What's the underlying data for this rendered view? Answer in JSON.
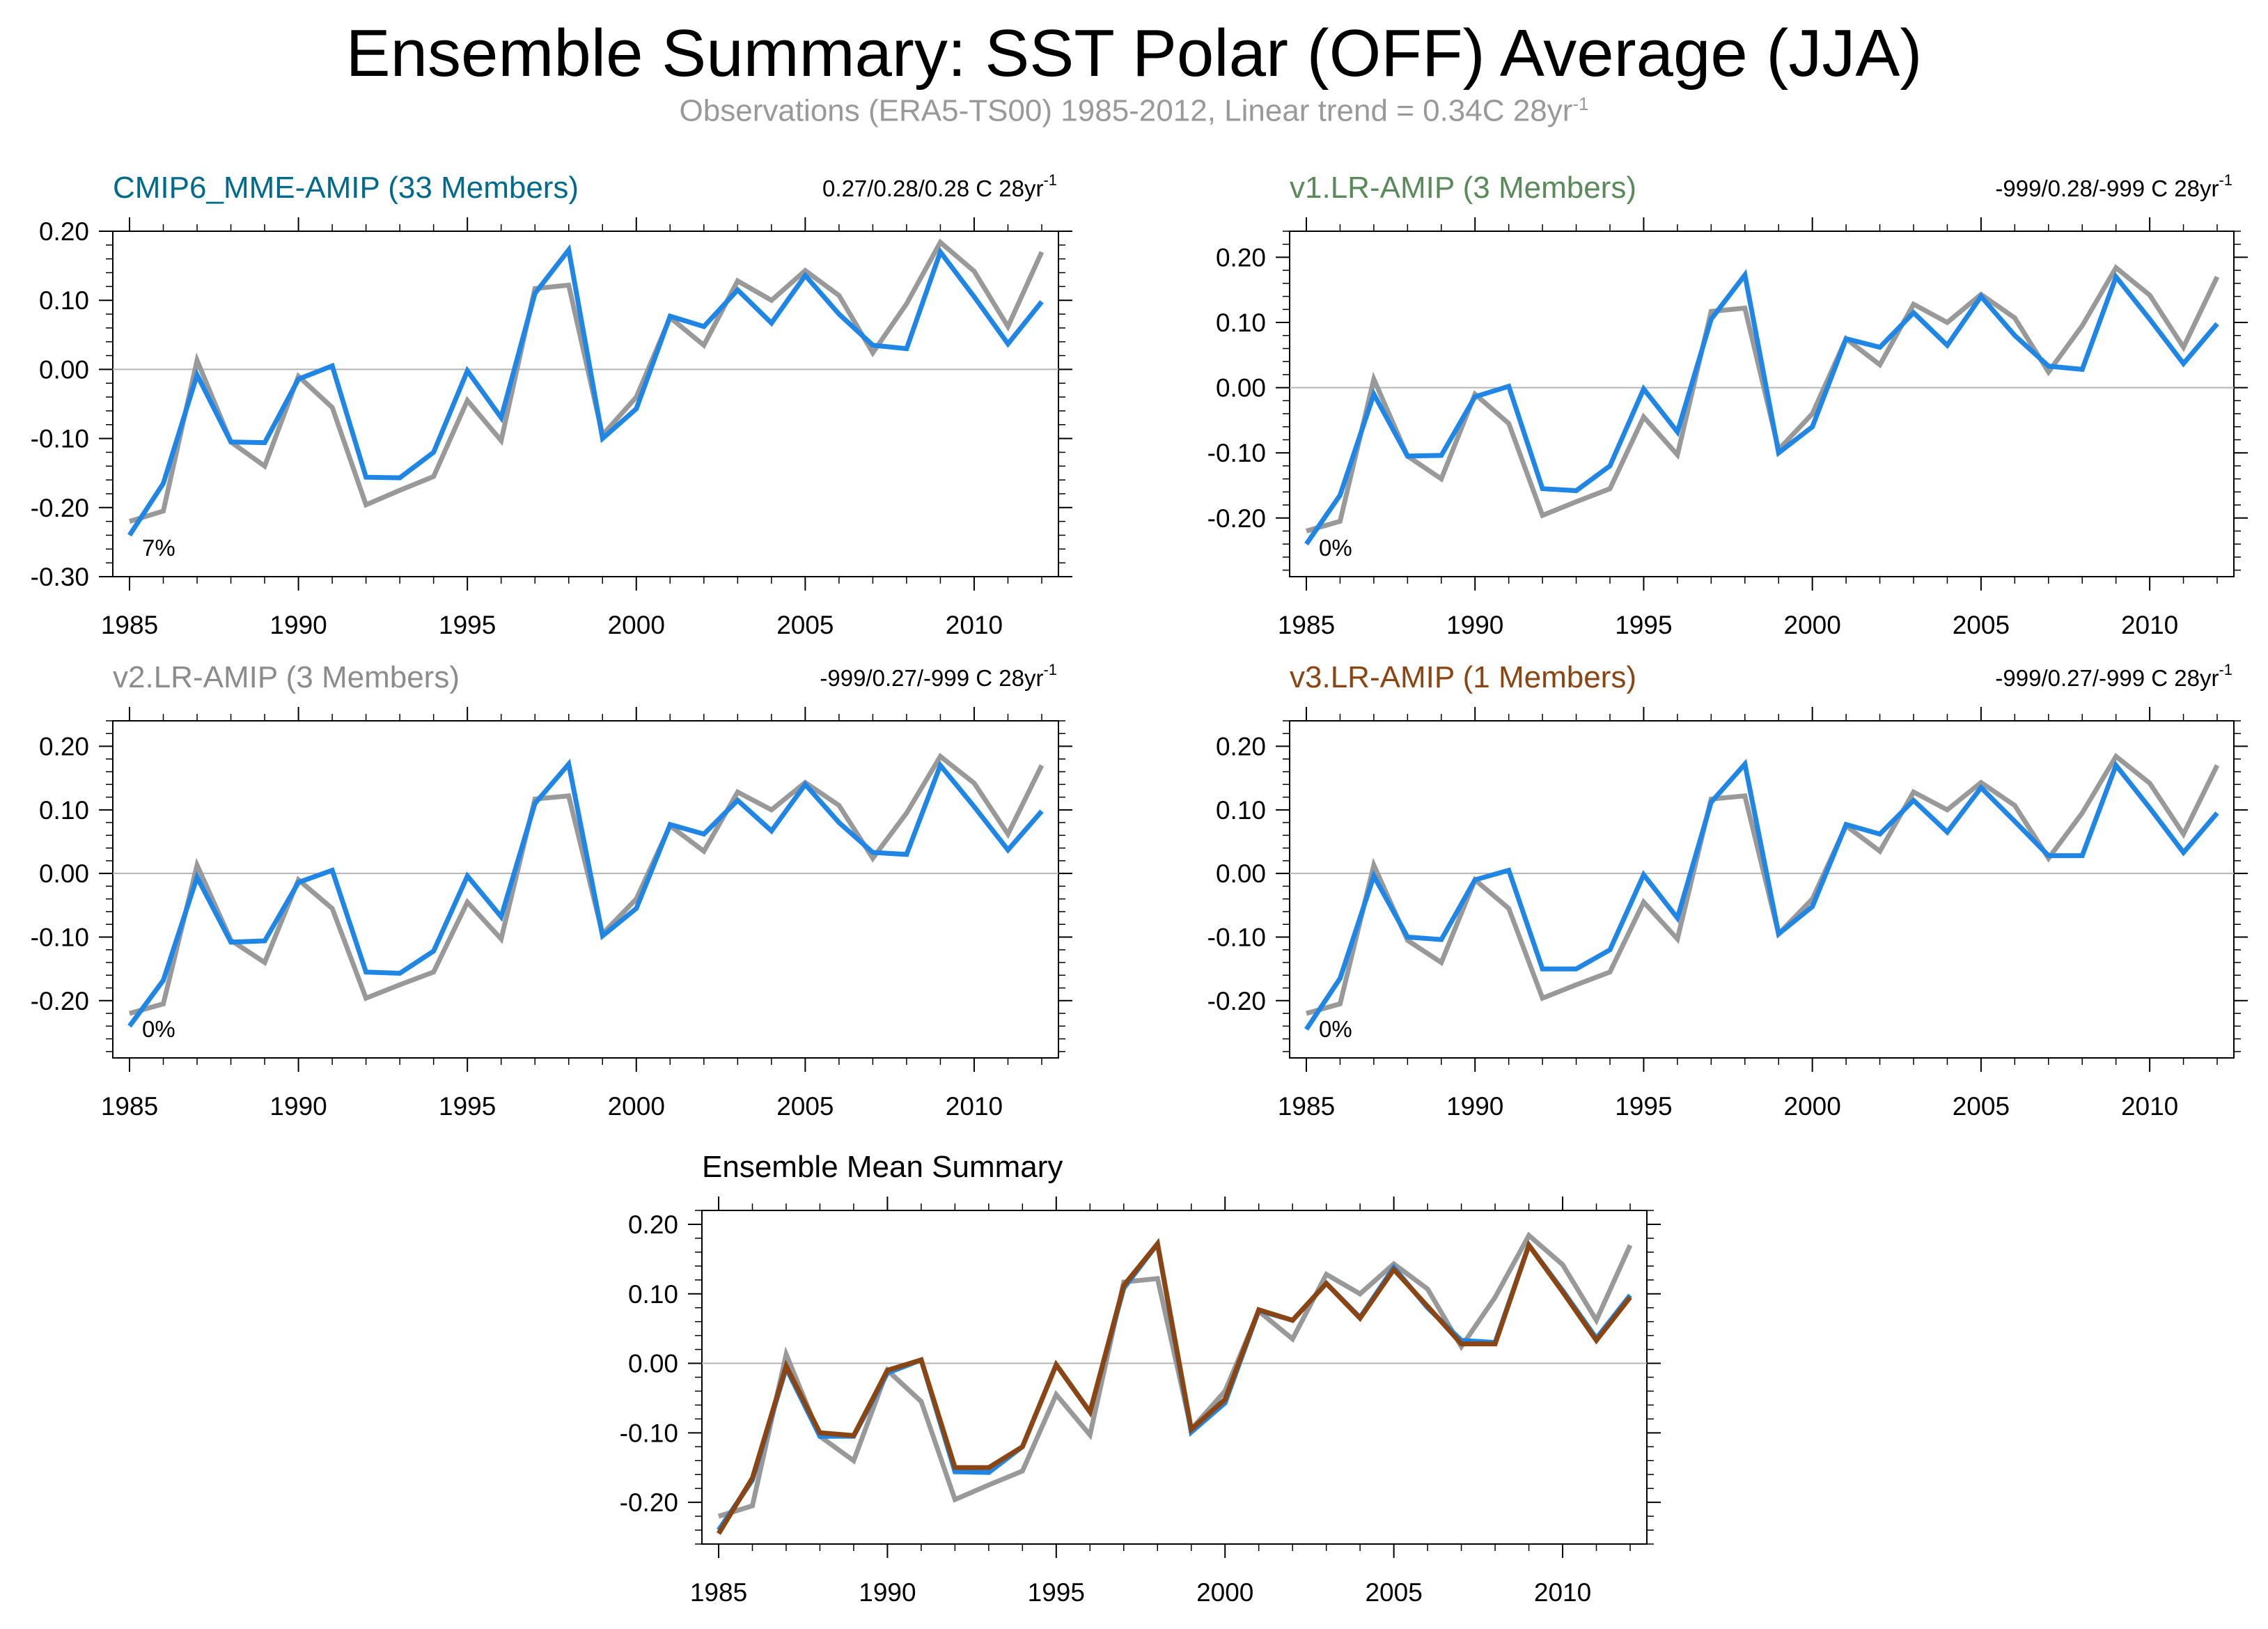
{
  "title": "Ensemble Summary: SST Polar (OFF) Average (JJA)",
  "subtitle": "Observations (ERA5-TS00) 1985-2012, Linear trend = 0.34C 28yr",
  "subtitle_sup": "-1",
  "colors": {
    "observations": "#999999",
    "ensemble_blue": "#1f86e6",
    "ensemble_mean": "#8b4513",
    "cmip6_title": "#006a8c",
    "v1_title": "#5a8a5a",
    "v2_title": "#8c8c8c",
    "v3_title": "#8b4513",
    "mean_title": "#000000"
  },
  "chart_data": [
    {
      "type": "line",
      "title": "CMIP6_MME-AMIP (33 Members)",
      "trend_label": "0.27/0.28/0.28 C 28yr",
      "trend_sup": "-1",
      "percent_label": "7%",
      "ylim": [
        -0.3,
        0.2
      ],
      "yticks": [
        "0.20",
        "0.10",
        "0.00",
        "-0.10",
        "-0.20",
        "-0.30"
      ],
      "xticks": [
        "1985",
        "1990",
        "1995",
        "2000",
        "2005",
        "2010"
      ],
      "x": [
        1985,
        1986,
        1987,
        1988,
        1989,
        1990,
        1991,
        1992,
        1993,
        1994,
        1995,
        1996,
        1997,
        1998,
        1999,
        2000,
        2001,
        2002,
        2003,
        2004,
        2005,
        2006,
        2007,
        2008,
        2009,
        2010,
        2011,
        2012
      ],
      "series": [
        {
          "values": [
            -0.22,
            -0.205,
            0.013,
            -0.105,
            -0.14,
            -0.01,
            -0.055,
            -0.196,
            -0.175,
            -0.155,
            -0.045,
            -0.103,
            0.117,
            0.122,
            -0.095,
            -0.04,
            0.075,
            0.035,
            0.128,
            0.1,
            0.143,
            0.107,
            0.024,
            0.095,
            0.184,
            0.142,
            0.062,
            0.17
          ]
        },
        {
          "values": [
            -0.24,
            -0.165,
            -0.008,
            -0.105,
            -0.106,
            -0.014,
            0.005,
            -0.156,
            -0.157,
            -0.12,
            -0.002,
            -0.07,
            0.11,
            0.173,
            -0.1,
            -0.057,
            0.077,
            0.062,
            0.115,
            0.067,
            0.136,
            0.08,
            0.035,
            0.03,
            0.17,
            0.105,
            0.037,
            0.098
          ]
        }
      ]
    },
    {
      "type": "line",
      "title": "v1.LR-AMIP (3 Members)",
      "trend_label": "-999/0.28/-999 C 28yr",
      "trend_sup": "-1",
      "percent_label": "0%",
      "ylim": [
        -0.29,
        0.24
      ],
      "yticks": [
        "0.20",
        "0.10",
        "0.00",
        "-0.10",
        "-0.20"
      ],
      "xticks": [
        "1985",
        "1990",
        "1995",
        "2000",
        "2005",
        "2010"
      ],
      "x": [
        1985,
        1986,
        1987,
        1988,
        1989,
        1990,
        1991,
        1992,
        1993,
        1994,
        1995,
        1996,
        1997,
        1998,
        1999,
        2000,
        2001,
        2002,
        2003,
        2004,
        2005,
        2006,
        2007,
        2008,
        2009,
        2010,
        2011,
        2012
      ],
      "series": [
        {
          "values": [
            -0.22,
            -0.205,
            0.013,
            -0.105,
            -0.14,
            -0.01,
            -0.055,
            -0.196,
            -0.175,
            -0.155,
            -0.045,
            -0.103,
            0.117,
            0.122,
            -0.095,
            -0.04,
            0.075,
            0.035,
            0.128,
            0.1,
            0.143,
            0.107,
            0.024,
            0.095,
            0.184,
            0.142,
            0.062,
            0.17
          ]
        },
        {
          "values": [
            -0.24,
            -0.165,
            -0.01,
            -0.105,
            -0.104,
            -0.014,
            0.002,
            -0.155,
            -0.158,
            -0.12,
            -0.002,
            -0.068,
            0.105,
            0.173,
            -0.1,
            -0.06,
            0.075,
            0.062,
            0.115,
            0.065,
            0.14,
            0.08,
            0.033,
            0.028,
            0.17,
            0.105,
            0.037,
            0.098
          ]
        }
      ]
    },
    {
      "type": "line",
      "title": "v2.LR-AMIP (3 Members)",
      "trend_label": "-999/0.27/-999 C 28yr",
      "trend_sup": "-1",
      "percent_label": "0%",
      "ylim": [
        -0.29,
        0.24
      ],
      "yticks": [
        "0.20",
        "0.10",
        "0.00",
        "-0.10",
        "-0.20"
      ],
      "xticks": [
        "1985",
        "1990",
        "1995",
        "2000",
        "2005",
        "2010"
      ],
      "x": [
        1985,
        1986,
        1987,
        1988,
        1989,
        1990,
        1991,
        1992,
        1993,
        1994,
        1995,
        1996,
        1997,
        1998,
        1999,
        2000,
        2001,
        2002,
        2003,
        2004,
        2005,
        2006,
        2007,
        2008,
        2009,
        2010,
        2011,
        2012
      ],
      "series": [
        {
          "values": [
            -0.22,
            -0.205,
            0.013,
            -0.105,
            -0.14,
            -0.01,
            -0.055,
            -0.196,
            -0.175,
            -0.155,
            -0.045,
            -0.103,
            0.117,
            0.122,
            -0.095,
            -0.04,
            0.075,
            0.035,
            0.128,
            0.1,
            0.143,
            0.107,
            0.024,
            0.095,
            0.184,
            0.142,
            0.062,
            0.17
          ]
        },
        {
          "values": [
            -0.24,
            -0.168,
            -0.006,
            -0.108,
            -0.106,
            -0.014,
            0.005,
            -0.155,
            -0.157,
            -0.122,
            -0.004,
            -0.068,
            0.11,
            0.172,
            -0.098,
            -0.055,
            0.077,
            0.062,
            0.115,
            0.067,
            0.14,
            0.08,
            0.033,
            0.03,
            0.17,
            0.105,
            0.037,
            0.098
          ]
        }
      ]
    },
    {
      "type": "line",
      "title": "v3.LR-AMIP (1 Members)",
      "trend_label": "-999/0.27/-999 C 28yr",
      "trend_sup": "-1",
      "percent_label": "0%",
      "ylim": [
        -0.29,
        0.24
      ],
      "yticks": [
        "0.20",
        "0.10",
        "0.00",
        "-0.10",
        "-0.20"
      ],
      "xticks": [
        "1985",
        "1990",
        "1995",
        "2000",
        "2005",
        "2010"
      ],
      "x": [
        1985,
        1986,
        1987,
        1988,
        1989,
        1990,
        1991,
        1992,
        1993,
        1994,
        1995,
        1996,
        1997,
        1998,
        1999,
        2000,
        2001,
        2002,
        2003,
        2004,
        2005,
        2006,
        2007,
        2008,
        2009,
        2010,
        2011,
        2012
      ],
      "series": [
        {
          "values": [
            -0.22,
            -0.205,
            0.013,
            -0.105,
            -0.14,
            -0.01,
            -0.055,
            -0.196,
            -0.175,
            -0.155,
            -0.045,
            -0.103,
            0.117,
            0.122,
            -0.095,
            -0.04,
            0.075,
            0.035,
            0.128,
            0.1,
            0.143,
            0.107,
            0.024,
            0.095,
            0.184,
            0.142,
            0.062,
            0.17
          ]
        },
        {
          "values": [
            -0.245,
            -0.165,
            -0.004,
            -0.1,
            -0.104,
            -0.01,
            0.005,
            -0.15,
            -0.15,
            -0.12,
            -0.002,
            -0.07,
            0.112,
            0.172,
            -0.095,
            -0.052,
            0.077,
            0.062,
            0.115,
            0.065,
            0.135,
            0.082,
            0.028,
            0.028,
            0.17,
            0.103,
            0.033,
            0.095
          ]
        }
      ]
    },
    {
      "type": "line",
      "title": "Ensemble Mean Summary",
      "ylim": [
        -0.26,
        0.22
      ],
      "yticks": [
        "0.20",
        "0.10",
        "0.00",
        "-0.10",
        "-0.20"
      ],
      "xticks": [
        "1985",
        "1990",
        "1995",
        "2000",
        "2005",
        "2010"
      ],
      "x": [
        1985,
        1986,
        1987,
        1988,
        1989,
        1990,
        1991,
        1992,
        1993,
        1994,
        1995,
        1996,
        1997,
        1998,
        1999,
        2000,
        2001,
        2002,
        2003,
        2004,
        2005,
        2006,
        2007,
        2008,
        2009,
        2010,
        2011,
        2012
      ],
      "series": [
        {
          "values": [
            -0.22,
            -0.205,
            0.013,
            -0.105,
            -0.14,
            -0.01,
            -0.055,
            -0.196,
            -0.175,
            -0.155,
            -0.045,
            -0.103,
            0.117,
            0.122,
            -0.095,
            -0.04,
            0.075,
            0.035,
            0.128,
            0.1,
            0.143,
            0.107,
            0.024,
            0.095,
            0.184,
            0.142,
            0.062,
            0.17
          ]
        },
        {
          "values": [
            -0.24,
            -0.168,
            -0.007,
            -0.105,
            -0.105,
            -0.014,
            0.005,
            -0.156,
            -0.157,
            -0.12,
            -0.002,
            -0.07,
            0.108,
            0.172,
            -0.099,
            -0.057,
            0.076,
            0.062,
            0.115,
            0.066,
            0.138,
            0.08,
            0.033,
            0.03,
            0.17,
            0.105,
            0.036,
            0.098
          ]
        },
        {
          "values": [
            -0.245,
            -0.165,
            -0.004,
            -0.1,
            -0.104,
            -0.01,
            0.005,
            -0.15,
            -0.15,
            -0.12,
            -0.002,
            -0.07,
            0.112,
            0.172,
            -0.095,
            -0.052,
            0.077,
            0.062,
            0.115,
            0.065,
            0.135,
            0.082,
            0.028,
            0.028,
            0.17,
            0.103,
            0.033,
            0.095
          ]
        }
      ]
    }
  ]
}
